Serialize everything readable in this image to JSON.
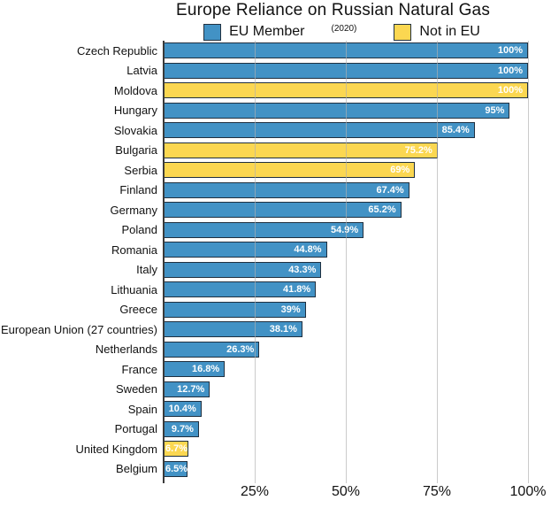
{
  "chart": {
    "title": "Europe Reliance on Russian Natural Gas",
    "legend": {
      "eu_label": "EU Member",
      "year_note": "(2020)",
      "non_eu_label": "Not in EU"
    },
    "colors": {
      "eu": "#4292C5",
      "non_eu": "#FBD751",
      "bar_border": "#1F3040",
      "gridline": "#AFAFAF",
      "axis": "#3A3A3A",
      "value_label": "#FFFFFF"
    }
  },
  "chart_data": {
    "type": "bar",
    "orientation": "horizontal",
    "title": "Europe Reliance on Russian Natural Gas",
    "subtitle": "(2020)",
    "legend": [
      "EU Member",
      "Not in EU"
    ],
    "legend_position": "top",
    "xlim": [
      0,
      100
    ],
    "grid": true,
    "x_ticks": [
      25,
      50,
      75,
      100
    ],
    "x_tick_labels": [
      "25%",
      "50%",
      "75%",
      "100%"
    ],
    "categories": [
      "Czech Republic",
      "Latvia",
      "Moldova",
      "Hungary",
      "Slovakia",
      "Bulgaria",
      "Serbia",
      "Finland",
      "Germany",
      "Poland",
      "Romania",
      "Italy",
      "Lithuania",
      "Greece",
      "European Union (27 countries)",
      "Netherlands",
      "France",
      "Sweden",
      "Spain",
      "Portugal",
      "United Kingdom",
      "Belgium"
    ],
    "values": [
      100,
      100,
      100,
      95,
      85.4,
      75.2,
      69,
      67.4,
      65.2,
      54.9,
      44.8,
      43.3,
      41.8,
      39,
      38.1,
      26.3,
      16.8,
      12.7,
      10.4,
      9.7,
      6.7,
      6.5
    ],
    "labels": [
      "100%",
      "100%",
      "100%",
      "95%",
      "85.4%",
      "75.2%",
      "69%",
      "67.4%",
      "65.2%",
      "54.9%",
      "44.8%",
      "43.3%",
      "41.8%",
      "39%",
      "38.1%",
      "26.3%",
      "16.8%",
      "12.7%",
      "10.4%",
      "9.7%",
      "6.7%",
      "6.5%"
    ],
    "groups": [
      "eu",
      "eu",
      "non_eu",
      "eu",
      "eu",
      "non_eu",
      "non_eu",
      "eu",
      "eu",
      "eu",
      "eu",
      "eu",
      "eu",
      "eu",
      "eu",
      "eu",
      "eu",
      "eu",
      "eu",
      "eu",
      "non_eu",
      "eu"
    ]
  }
}
